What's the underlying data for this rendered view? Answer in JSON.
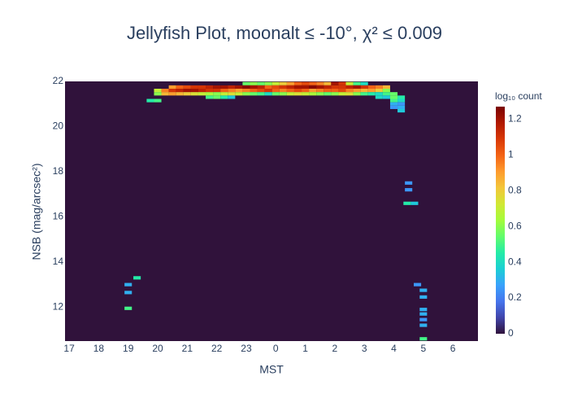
{
  "chart_data": {
    "type": "heatmap",
    "title": "Jellyfish Plot, moonalt ≤ -10°, χ² ≤ 0.009",
    "x_label": "MST",
    "y_label": "NSB (mag/arcsec²)",
    "colorbar_title": "log₁₀ count",
    "xlim": [
      16.86,
      30.85
    ],
    "ylim": [
      10.5,
      22
    ],
    "clim": [
      0,
      1.27
    ],
    "xticks": [
      17,
      18,
      19,
      20,
      21,
      22,
      23,
      {
        "value": 24,
        "label": "0"
      },
      {
        "value": 25,
        "label": "1"
      },
      {
        "value": 26,
        "label": "2"
      },
      {
        "value": 27,
        "label": "3"
      },
      {
        "value": 28,
        "label": "4"
      },
      {
        "value": 29,
        "label": "5"
      },
      {
        "value": 30,
        "label": "6"
      }
    ],
    "yticks": [
      12,
      14,
      16,
      18,
      20,
      22
    ],
    "cticks": [
      0,
      0.2,
      0.4,
      0.6,
      0.8,
      1,
      1.2
    ],
    "colorscale": [
      "#30123b",
      "#4145ab",
      "#4675ed",
      "#39a2fc",
      "#1bcfd4",
      "#24eca6",
      "#61fc6c",
      "#a4fc3b",
      "#d1e834",
      "#f3c63a",
      "#fe9b2d",
      "#f36315",
      "#d93806",
      "#b11901",
      "#7a0402"
    ],
    "x": [
      23,
      23.25,
      23.5,
      23.75,
      24,
      24.25,
      24.5,
      24.75,
      25,
      25.25,
      25.5,
      25.75,
      26,
      26.25,
      26.5,
      26.75,
      27,
      20.5,
      20.75,
      21,
      21.25,
      21.5,
      21.75,
      22,
      22.25,
      22.5,
      22.75,
      23,
      23.25,
      23.5,
      23.75,
      24,
      24.25,
      24.5,
      24.75,
      25,
      25.25,
      25.5,
      25.75,
      26,
      26.25,
      26.5,
      26.75,
      27,
      27.25,
      27.5,
      27.75,
      20,
      20.25,
      20.5,
      20.75,
      21,
      21.25,
      21.5,
      21.75,
      22,
      22.25,
      22.5,
      22.75,
      23,
      23.25,
      23.5,
      23.75,
      24,
      24.25,
      24.5,
      24.75,
      25,
      25.25,
      25.5,
      25.75,
      26,
      26.25,
      26.5,
      26.75,
      27,
      27.25,
      27.5,
      27.75,
      20,
      20.25,
      20.5,
      20.75,
      21,
      21.25,
      21.5,
      21.75,
      22,
      22.25,
      22.5,
      22.75,
      23,
      23.25,
      23.5,
      23.75,
      24,
      24.25,
      24.5,
      24.75,
      25,
      25.25,
      25.5,
      25.75,
      26,
      26.25,
      26.5,
      26.75,
      27,
      27.25,
      27.5,
      27.75,
      28,
      21.75,
      22,
      22.25,
      22.5,
      27.5,
      27.75,
      28,
      28.25,
      28,
      28,
      28,
      28.25,
      28.25,
      28.25,
      28.25,
      19.75,
      20,
      19,
      19,
      19,
      19.3,
      28.5,
      28.5,
      28.45,
      28.7,
      28.8,
      29,
      29,
      29,
      29,
      29,
      29,
      29
    ],
    "y": [
      21.9,
      21.9,
      21.9,
      21.9,
      21.9,
      21.9,
      21.9,
      21.9,
      21.9,
      21.9,
      21.9,
      21.9,
      21.9,
      21.9,
      21.9,
      21.9,
      21.9,
      21.75,
      21.75,
      21.75,
      21.75,
      21.75,
      21.75,
      21.75,
      21.75,
      21.75,
      21.75,
      21.75,
      21.75,
      21.75,
      21.75,
      21.75,
      21.75,
      21.75,
      21.75,
      21.75,
      21.75,
      21.75,
      21.75,
      21.75,
      21.75,
      21.75,
      21.75,
      21.75,
      21.75,
      21.75,
      21.75,
      21.6,
      21.6,
      21.6,
      21.6,
      21.6,
      21.6,
      21.6,
      21.6,
      21.6,
      21.6,
      21.6,
      21.6,
      21.6,
      21.6,
      21.6,
      21.6,
      21.6,
      21.6,
      21.6,
      21.6,
      21.6,
      21.6,
      21.6,
      21.6,
      21.6,
      21.6,
      21.6,
      21.6,
      21.6,
      21.6,
      21.6,
      21.6,
      21.45,
      21.45,
      21.45,
      21.45,
      21.45,
      21.45,
      21.45,
      21.45,
      21.45,
      21.45,
      21.45,
      21.45,
      21.45,
      21.45,
      21.45,
      21.45,
      21.45,
      21.45,
      21.45,
      21.45,
      21.45,
      21.45,
      21.45,
      21.45,
      21.45,
      21.45,
      21.45,
      21.45,
      21.45,
      21.45,
      21.45,
      21.45,
      21.45,
      21.3,
      21.3,
      21.3,
      21.3,
      21.3,
      21.3,
      21.3,
      21.3,
      21.15,
      21.0,
      20.85,
      21.15,
      21.0,
      20.85,
      20.7,
      21.15,
      21.15,
      13.0,
      12.65,
      11.95,
      13.3,
      17.5,
      17.2,
      16.6,
      16.6,
      13.0,
      12.75,
      12.45,
      11.9,
      11.7,
      11.45,
      11.2,
      10.6
    ],
    "values": [
      0.55,
      0.6,
      0.55,
      0.6,
      0.7,
      0.8,
      0.9,
      1.0,
      1.05,
      1.0,
      0.95,
      0.85,
      1.2,
      1.1,
      0.7,
      0.5,
      0.4,
      0.9,
      1.0,
      1.05,
      1.1,
      1.1,
      1.15,
      1.2,
      1.2,
      1.15,
      1.2,
      1.25,
      1.2,
      1.15,
      1.0,
      1.05,
      1.1,
      1.15,
      1.2,
      1.2,
      1.25,
      1.2,
      1.15,
      1.1,
      1.1,
      1.15,
      1.2,
      1.1,
      1.0,
      0.95,
      0.85,
      0.7,
      0.95,
      1.1,
      1.15,
      1.2,
      1.2,
      1.15,
      1.1,
      1.1,
      1.0,
      0.95,
      0.9,
      0.95,
      1.0,
      1.05,
      1.1,
      1.0,
      0.95,
      1.0,
      1.05,
      1.0,
      0.9,
      0.95,
      1.0,
      1.0,
      1.05,
      0.95,
      0.9,
      0.85,
      0.9,
      0.8,
      0.6,
      0.6,
      0.85,
      0.9,
      0.85,
      0.8,
      0.75,
      0.7,
      0.65,
      0.6,
      0.7,
      0.75,
      0.7,
      0.6,
      0.55,
      0.5,
      0.4,
      0.55,
      0.6,
      0.7,
      0.75,
      0.7,
      0.65,
      0.6,
      0.55,
      0.6,
      0.7,
      0.75,
      0.6,
      0.5,
      0.45,
      0.4,
      0.5,
      0.55,
      0.5,
      0.55,
      0.45,
      0.35,
      0.4,
      0.35,
      0.55,
      0.45,
      0.5,
      0.3,
      0.25,
      0.4,
      0.25,
      0.3,
      0.35,
      0.45,
      0.5,
      0.3,
      0.3,
      0.5,
      0.45,
      0.25,
      0.25,
      0.45,
      0.35,
      0.25,
      0.3,
      0.3,
      0.3,
      0.3,
      0.25,
      0.3,
      0.5
    ]
  }
}
